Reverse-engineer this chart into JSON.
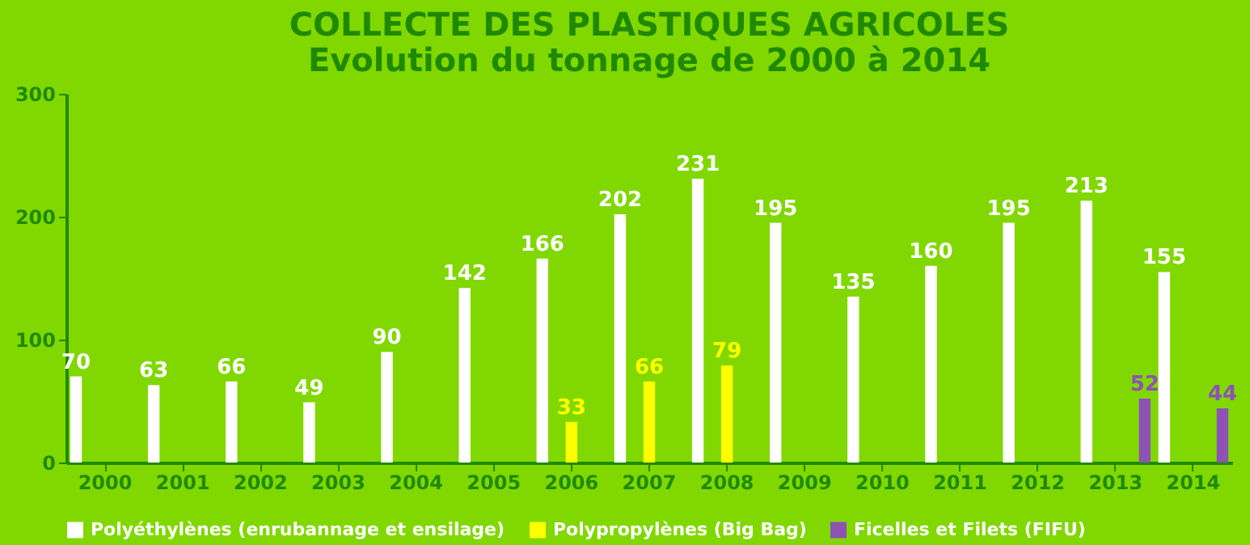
{
  "chart_data": {
    "type": "bar",
    "title": [
      "COLLECTE DES PLASTIQUES AGRICOLES",
      "Evolution du tonnage de 2000 à 2014"
    ],
    "categories": [
      "2000",
      "2001",
      "2002",
      "2003",
      "2004",
      "2005",
      "2006",
      "2007",
      "2008",
      "2009",
      "2010",
      "2011",
      "2012",
      "2013",
      "2014"
    ],
    "series": [
      {
        "name": "Polyéthylènes (enrubannage et ensilage)",
        "color": "#ffffff",
        "values": [
          70,
          63,
          66,
          49,
          90,
          142,
          166,
          202,
          231,
          195,
          135,
          160,
          195,
          213,
          155
        ]
      },
      {
        "name": "Polypropylènes (Big Bag)",
        "color": "#ffff00",
        "values": [
          null,
          null,
          null,
          null,
          null,
          null,
          33,
          66,
          79,
          null,
          null,
          null,
          null,
          null,
          null
        ]
      },
      {
        "name": "Ficelles et Filets (FIFU)",
        "color": "#8e52b4",
        "values": [
          null,
          null,
          null,
          null,
          null,
          null,
          null,
          null,
          null,
          null,
          null,
          null,
          null,
          52,
          44
        ]
      }
    ],
    "ylim": [
      0,
      300
    ],
    "yticks": [
      0,
      100,
      200,
      300
    ],
    "grid": false,
    "legend": "bottom",
    "data_labels": true
  }
}
